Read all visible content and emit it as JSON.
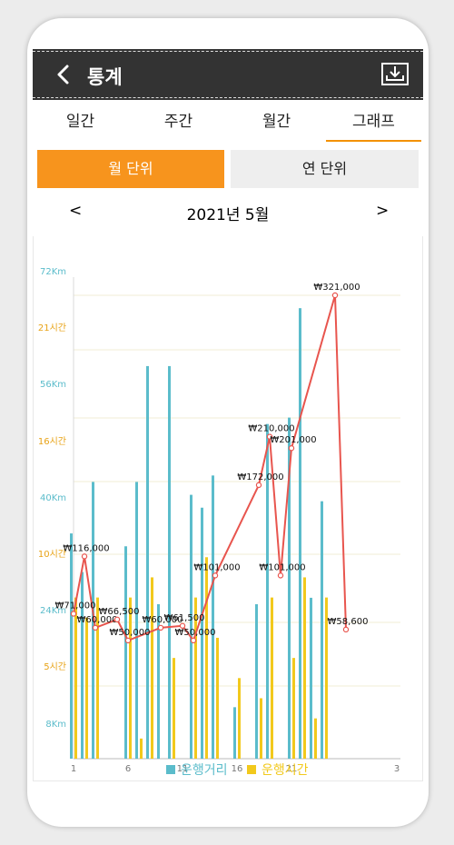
{
  "header": {
    "title": "통계",
    "back_icon": "chevron-left-icon",
    "download_icon": "download-icon"
  },
  "tabs": [
    {
      "label": "일간",
      "active": false
    },
    {
      "label": "주간",
      "active": false
    },
    {
      "label": "월간",
      "active": false
    },
    {
      "label": "그래프",
      "active": true
    }
  ],
  "segments": {
    "monthly": "월 단위",
    "yearly": "연 단위",
    "selected": "monthly"
  },
  "period": {
    "prev": "<",
    "label": "2021년 5월",
    "next": ">"
  },
  "colors": {
    "accent": "#f7941d",
    "distance": "#5bbccb",
    "time": "#f2c91c",
    "amount": "#e8554e",
    "header": "#333333"
  },
  "legend": {
    "distance": "운행거리",
    "time": "운행시간"
  },
  "chart_data": {
    "type": "bar",
    "x_ticks": [
      "1",
      "6",
      "11",
      "16",
      "21",
      "3"
    ],
    "left_axis_distance": [
      "72Km",
      "56Km",
      "40Km",
      "24Km",
      "8Km"
    ],
    "left_axis_time": [
      "21시간",
      "16시간",
      "10시간",
      "5시간"
    ],
    "distance_km": [
      {
        "day": 1,
        "value": 35
      },
      {
        "day": 2,
        "value": 29
      },
      {
        "day": 3,
        "value": 43
      },
      {
        "day": 6,
        "value": 33
      },
      {
        "day": 7,
        "value": 43
      },
      {
        "day": 8,
        "value": 61
      },
      {
        "day": 9,
        "value": 24
      },
      {
        "day": 10,
        "value": 61
      },
      {
        "day": 12,
        "value": 41
      },
      {
        "day": 13,
        "value": 39
      },
      {
        "day": 14,
        "value": 44
      },
      {
        "day": 16,
        "value": 8
      },
      {
        "day": 18,
        "value": 24
      },
      {
        "day": 19,
        "value": 52
      },
      {
        "day": 21,
        "value": 53
      },
      {
        "day": 22,
        "value": 70
      },
      {
        "day": 23,
        "value": 25
      },
      {
        "day": 24,
        "value": 40
      }
    ],
    "time_hours": [
      {
        "day": 1,
        "value": 8
      },
      {
        "day": 2,
        "value": 7
      },
      {
        "day": 3,
        "value": 8
      },
      {
        "day": 6,
        "value": 8
      },
      {
        "day": 7,
        "value": 1
      },
      {
        "day": 8,
        "value": 9
      },
      {
        "day": 10,
        "value": 5
      },
      {
        "day": 12,
        "value": 8
      },
      {
        "day": 13,
        "value": 10
      },
      {
        "day": 14,
        "value": 6
      },
      {
        "day": 16,
        "value": 4
      },
      {
        "day": 18,
        "value": 3
      },
      {
        "day": 19,
        "value": 8
      },
      {
        "day": 21,
        "value": 5
      },
      {
        "day": 22,
        "value": 9
      },
      {
        "day": 23,
        "value": 2
      },
      {
        "day": 24,
        "value": 8
      }
    ],
    "amounts": [
      {
        "day": 1,
        "value": 71000,
        "label": "₩71,000"
      },
      {
        "day": 2,
        "value": 116000,
        "label": "₩116,000"
      },
      {
        "day": 3,
        "value": 60000,
        "label": "₩60,000"
      },
      {
        "day": 5,
        "value": 66500,
        "label": "₩66,500"
      },
      {
        "day": 6,
        "value": 50000,
        "label": "₩50,000"
      },
      {
        "day": 9,
        "value": 60000,
        "label": "₩60,000"
      },
      {
        "day": 11,
        "value": 61500,
        "label": "₩61,500"
      },
      {
        "day": 12,
        "value": 50000,
        "label": "₩50,000"
      },
      {
        "day": 14,
        "value": 101000,
        "label": "₩101,000"
      },
      {
        "day": 18,
        "value": 172000,
        "label": "₩172,000"
      },
      {
        "day": 19,
        "value": 210000,
        "label": "₩210,000"
      },
      {
        "day": 20,
        "value": 101000,
        "label": "₩101,000"
      },
      {
        "day": 21,
        "value": 201000,
        "label": "₩201,000"
      },
      {
        "day": 25,
        "value": 321000,
        "label": "₩321,000"
      },
      {
        "day": 26,
        "value": 58600,
        "label": "₩58,600"
      }
    ]
  }
}
